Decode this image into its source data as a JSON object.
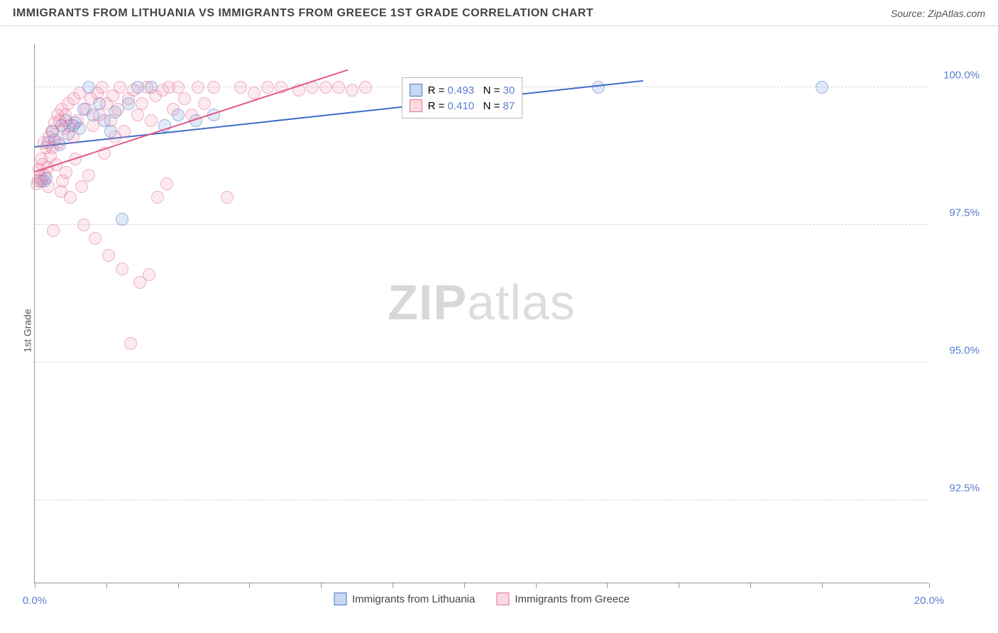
{
  "header": {
    "title": "IMMIGRANTS FROM LITHUANIA VS IMMIGRANTS FROM GREECE 1ST GRADE CORRELATION CHART",
    "source_label": "Source: ",
    "source_value": "ZipAtlas.com"
  },
  "chart": {
    "type": "scatter",
    "ylabel": "1st Grade",
    "xlim": [
      0.0,
      20.0
    ],
    "ylim": [
      91.0,
      100.8
    ],
    "ytick_positions": [
      92.5,
      95.0,
      97.5,
      100.0
    ],
    "ytick_labels": [
      "92.5%",
      "95.0%",
      "97.5%",
      "100.0%"
    ],
    "xtick_positions": [
      0,
      1.6,
      3.2,
      4.8,
      6.4,
      8.0,
      9.6,
      11.2,
      12.8,
      14.4,
      16.0,
      17.6,
      20.0
    ],
    "xtick_labels_shown": {
      "0": "0.0%",
      "20": "20.0%"
    },
    "background_color": "#ffffff",
    "grid_color": "#d5d5d5",
    "axis_color": "#999999",
    "tick_label_color": "#5b7fd1",
    "watermark_zip": "ZIP",
    "watermark_atlas": "atlas",
    "series": [
      {
        "name": "Immigrants from Lithuania",
        "color_fill": "rgba(100,140,220,0.35)",
        "color_stroke": "#4a77c9",
        "r_value": "0.493",
        "n_value": "30",
        "trend": {
          "x1": 0.0,
          "y1": 98.9,
          "x2": 13.6,
          "y2": 100.1,
          "color": "#3e6fc7"
        },
        "points": [
          [
            0.15,
            98.3
          ],
          [
            0.2,
            98.3
          ],
          [
            0.25,
            98.35
          ],
          [
            0.3,
            99.0
          ],
          [
            0.4,
            99.2
          ],
          [
            0.45,
            99.05
          ],
          [
            0.55,
            98.95
          ],
          [
            0.6,
            99.3
          ],
          [
            0.7,
            99.4
          ],
          [
            0.75,
            99.15
          ],
          [
            0.85,
            99.3
          ],
          [
            0.9,
            99.35
          ],
          [
            1.0,
            99.25
          ],
          [
            1.1,
            99.6
          ],
          [
            1.2,
            100.0
          ],
          [
            1.3,
            99.5
          ],
          [
            1.45,
            99.7
          ],
          [
            1.55,
            99.4
          ],
          [
            1.7,
            99.2
          ],
          [
            1.8,
            99.55
          ],
          [
            1.95,
            97.6
          ],
          [
            2.1,
            99.7
          ],
          [
            2.3,
            100.0
          ],
          [
            2.6,
            100.0
          ],
          [
            2.9,
            99.3
          ],
          [
            3.2,
            99.5
          ],
          [
            3.6,
            99.4
          ],
          [
            4.0,
            99.5
          ],
          [
            12.6,
            100.0
          ],
          [
            17.6,
            100.0
          ]
        ]
      },
      {
        "name": "Immigrants from Greece",
        "color_fill": "rgba(240,130,160,0.3)",
        "color_stroke": "#e46f95",
        "r_value": "0.410",
        "n_value": "87",
        "trend": {
          "x1": 0.0,
          "y1": 98.45,
          "x2": 7.0,
          "y2": 100.3,
          "color": "#e05a85"
        },
        "points": [
          [
            0.05,
            98.25
          ],
          [
            0.08,
            98.3
          ],
          [
            0.1,
            98.5
          ],
          [
            0.12,
            98.35
          ],
          [
            0.15,
            98.7
          ],
          [
            0.18,
            98.6
          ],
          [
            0.2,
            99.0
          ],
          [
            0.22,
            98.4
          ],
          [
            0.25,
            98.9
          ],
          [
            0.28,
            98.55
          ],
          [
            0.3,
            98.2
          ],
          [
            0.32,
            99.1
          ],
          [
            0.35,
            98.75
          ],
          [
            0.38,
            99.2
          ],
          [
            0.4,
            98.9
          ],
          [
            0.42,
            97.4
          ],
          [
            0.45,
            99.35
          ],
          [
            0.48,
            98.6
          ],
          [
            0.5,
            99.5
          ],
          [
            0.52,
            99.0
          ],
          [
            0.55,
            99.4
          ],
          [
            0.58,
            98.1
          ],
          [
            0.6,
            99.6
          ],
          [
            0.62,
            98.3
          ],
          [
            0.65,
            99.25
          ],
          [
            0.68,
            99.5
          ],
          [
            0.7,
            98.45
          ],
          [
            0.75,
            99.7
          ],
          [
            0.78,
            99.3
          ],
          [
            0.8,
            98.0
          ],
          [
            0.85,
            99.1
          ],
          [
            0.88,
            99.8
          ],
          [
            0.9,
            98.7
          ],
          [
            0.95,
            99.4
          ],
          [
            1.0,
            99.9
          ],
          [
            1.05,
            98.2
          ],
          [
            1.1,
            97.5
          ],
          [
            1.15,
            99.6
          ],
          [
            1.2,
            98.4
          ],
          [
            1.25,
            99.8
          ],
          [
            1.3,
            99.3
          ],
          [
            1.35,
            97.25
          ],
          [
            1.4,
            99.9
          ],
          [
            1.45,
            99.5
          ],
          [
            1.5,
            100.0
          ],
          [
            1.55,
            98.8
          ],
          [
            1.6,
            99.7
          ],
          [
            1.65,
            96.95
          ],
          [
            1.7,
            99.4
          ],
          [
            1.75,
            99.85
          ],
          [
            1.8,
            99.1
          ],
          [
            1.85,
            99.6
          ],
          [
            1.9,
            100.0
          ],
          [
            1.95,
            96.7
          ],
          [
            2.0,
            99.2
          ],
          [
            2.1,
            99.8
          ],
          [
            2.15,
            95.35
          ],
          [
            2.2,
            99.95
          ],
          [
            2.3,
            99.5
          ],
          [
            2.35,
            96.45
          ],
          [
            2.4,
            99.7
          ],
          [
            2.5,
            100.0
          ],
          [
            2.55,
            96.6
          ],
          [
            2.6,
            99.4
          ],
          [
            2.7,
            99.85
          ],
          [
            2.75,
            98.0
          ],
          [
            2.85,
            99.95
          ],
          [
            2.95,
            98.25
          ],
          [
            3.0,
            100.0
          ],
          [
            3.1,
            99.6
          ],
          [
            3.2,
            100.0
          ],
          [
            3.35,
            99.8
          ],
          [
            3.5,
            99.5
          ],
          [
            3.65,
            100.0
          ],
          [
            3.8,
            99.7
          ],
          [
            4.0,
            100.0
          ],
          [
            4.3,
            98.0
          ],
          [
            4.6,
            100.0
          ],
          [
            4.9,
            99.9
          ],
          [
            5.2,
            100.0
          ],
          [
            5.5,
            100.0
          ],
          [
            5.9,
            99.95
          ],
          [
            6.2,
            100.0
          ],
          [
            6.5,
            100.0
          ],
          [
            6.8,
            100.0
          ],
          [
            7.1,
            99.95
          ],
          [
            7.4,
            100.0
          ]
        ]
      }
    ],
    "legend_stats": {
      "r_label": "R = ",
      "n_label": "N = "
    },
    "bottom_legend": [
      {
        "swatch": "blue",
        "label": "Immigrants from Lithuania"
      },
      {
        "swatch": "pink",
        "label": "Immigrants from Greece"
      }
    ]
  }
}
